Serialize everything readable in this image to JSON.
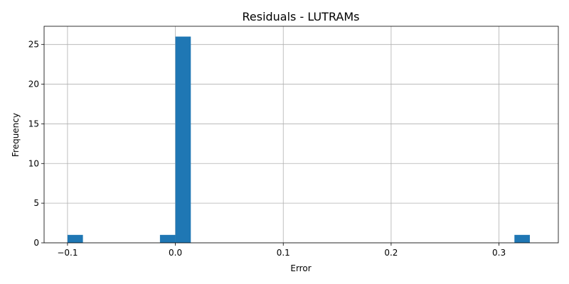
{
  "chart_data": {
    "type": "bar",
    "title": "Residuals - LUTRAMs",
    "xlabel": "Error",
    "ylabel": "Frequency",
    "xlim": [
      -0.1217,
      0.355
    ],
    "ylim": [
      0,
      27.3
    ],
    "xticks": [
      -0.1,
      0.0,
      0.1,
      0.2,
      0.3
    ],
    "xtick_labels": [
      "−0.1",
      "0.0",
      "0.1",
      "0.2",
      "0.3"
    ],
    "yticks": [
      0,
      5,
      10,
      15,
      20,
      25
    ],
    "ytick_labels": [
      "0",
      "5",
      "10",
      "15",
      "20",
      "25"
    ],
    "grid": true,
    "bar_color": "#1f77b4",
    "bins": [
      {
        "x0": -0.1,
        "x1": -0.0857,
        "value": 1
      },
      {
        "x0": -0.0143,
        "x1": 0.0,
        "value": 1
      },
      {
        "x0": 0.0,
        "x1": 0.0143,
        "value": 26
      },
      {
        "x0": 0.3143,
        "x1": 0.3286,
        "value": 1
      }
    ]
  }
}
